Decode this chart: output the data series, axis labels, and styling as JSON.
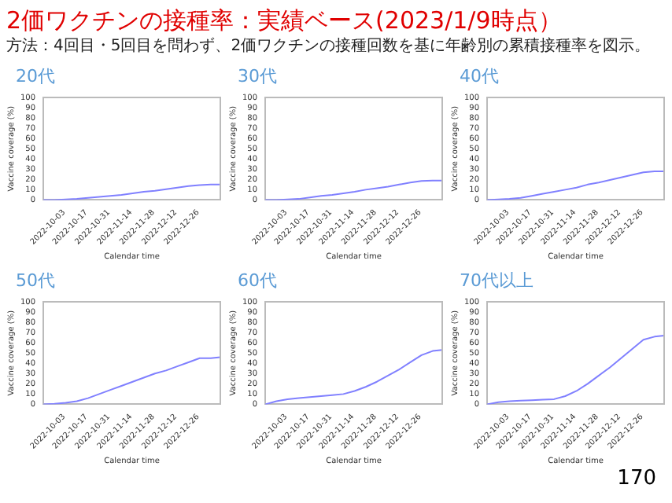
{
  "chart_data": [
    {
      "type": "other",
      "title": "2価ワクチンの接種率：実績ベース(2023/1/9時点）",
      "subtitle": "方法：4回目・5回目を問わず、2価ワクチンの接種回数を基に年齢別の累積接種率を図示。",
      "annotations": [
        "170"
      ]
    },
    {
      "type": "line",
      "title": "20代",
      "xlabel": "Calendar time",
      "ylabel": "Vaccine coverage (%)",
      "x": [
        "2022-09-20",
        "2022-09-27",
        "2022-10-04",
        "2022-10-11",
        "2022-10-18",
        "2022-10-25",
        "2022-11-01",
        "2022-11-08",
        "2022-11-15",
        "2022-11-22",
        "2022-11-29",
        "2022-12-06",
        "2022-12-13",
        "2022-12-20",
        "2022-12-27",
        "2023-01-03",
        "2023-01-09"
      ],
      "series": [
        {
          "color": "#8080ff",
          "values": [
            0,
            0,
            0.5,
            1,
            2,
            3,
            4,
            5,
            6.5,
            8,
            9,
            10.5,
            12,
            13.5,
            14.5,
            15,
            15
          ]
        }
      ],
      "xlim": [
        "2022-09-20",
        "2023-01-09"
      ],
      "xticks": [
        "2022-10-03",
        "2022-10-17",
        "2022-10-31",
        "2022-11-14",
        "2022-11-28",
        "2022-12-12",
        "2022-12-26"
      ],
      "ylim": [
        0,
        100
      ],
      "yticks": [
        0,
        10,
        20,
        30,
        40,
        50,
        60,
        70,
        80,
        90,
        100
      ],
      "grid": false,
      "legend": false,
      "marker": "none"
    },
    {
      "type": "line",
      "title": "30代",
      "xlabel": "Calendar time",
      "ylabel": "Vaccine coverage (%)",
      "x": [
        "2022-09-20",
        "2022-09-27",
        "2022-10-04",
        "2022-10-11",
        "2022-10-18",
        "2022-10-25",
        "2022-11-01",
        "2022-11-08",
        "2022-11-15",
        "2022-11-22",
        "2022-11-29",
        "2022-12-06",
        "2022-12-13",
        "2022-12-20",
        "2022-12-27",
        "2023-01-03",
        "2023-01-09"
      ],
      "series": [
        {
          "color": "#8080ff",
          "values": [
            0,
            0,
            0.5,
            1,
            2.5,
            4,
            5,
            6.5,
            8,
            10,
            11.5,
            13,
            15,
            17,
            18.5,
            19,
            19
          ]
        }
      ],
      "xlim": [
        "2022-09-20",
        "2023-01-09"
      ],
      "xticks": [
        "2022-10-03",
        "2022-10-17",
        "2022-10-31",
        "2022-11-14",
        "2022-11-28",
        "2022-12-12",
        "2022-12-26"
      ],
      "ylim": [
        0,
        100
      ],
      "yticks": [
        0,
        10,
        20,
        30,
        40,
        50,
        60,
        70,
        80,
        90,
        100
      ],
      "grid": false,
      "legend": false,
      "marker": "none"
    },
    {
      "type": "line",
      "title": "40代",
      "xlabel": "Calendar time",
      "ylabel": "Vaccine coverage (%)",
      "x": [
        "2022-09-20",
        "2022-09-27",
        "2022-10-04",
        "2022-10-11",
        "2022-10-18",
        "2022-10-25",
        "2022-11-01",
        "2022-11-08",
        "2022-11-15",
        "2022-11-22",
        "2022-11-29",
        "2022-12-06",
        "2022-12-13",
        "2022-12-20",
        "2022-12-27",
        "2023-01-03",
        "2023-01-09"
      ],
      "series": [
        {
          "color": "#8080ff",
          "values": [
            0,
            0.5,
            1,
            2,
            4,
            6,
            8,
            10,
            12,
            15,
            17,
            19.5,
            22,
            24.5,
            27,
            28,
            28
          ]
        }
      ],
      "xlim": [
        "2022-09-20",
        "2023-01-09"
      ],
      "xticks": [
        "2022-10-03",
        "2022-10-17",
        "2022-10-31",
        "2022-11-14",
        "2022-11-28",
        "2022-12-12",
        "2022-12-26"
      ],
      "ylim": [
        0,
        100
      ],
      "yticks": [
        0,
        10,
        20,
        30,
        40,
        50,
        60,
        70,
        80,
        90,
        100
      ],
      "grid": false,
      "legend": false,
      "marker": "none"
    },
    {
      "type": "line",
      "title": "50代",
      "xlabel": "Calendar time",
      "ylabel": "Vaccine coverage (%)",
      "x": [
        "2022-09-20",
        "2022-09-27",
        "2022-10-04",
        "2022-10-11",
        "2022-10-18",
        "2022-10-25",
        "2022-11-01",
        "2022-11-08",
        "2022-11-15",
        "2022-11-22",
        "2022-11-29",
        "2022-12-06",
        "2022-12-13",
        "2022-12-20",
        "2022-12-27",
        "2023-01-03",
        "2023-01-09"
      ],
      "series": [
        {
          "color": "#8080ff",
          "values": [
            0,
            0.5,
            1.5,
            3,
            6,
            10,
            14,
            18,
            22,
            26,
            30,
            33,
            37,
            41,
            45,
            45,
            46
          ]
        }
      ],
      "xlim": [
        "2022-09-20",
        "2023-01-09"
      ],
      "xticks": [
        "2022-10-03",
        "2022-10-17",
        "2022-10-31",
        "2022-11-14",
        "2022-11-28",
        "2022-12-12",
        "2022-12-26"
      ],
      "ylim": [
        0,
        100
      ],
      "yticks": [
        0,
        10,
        20,
        30,
        40,
        50,
        60,
        70,
        80,
        90,
        100
      ],
      "grid": false,
      "legend": false,
      "marker": "none"
    },
    {
      "type": "line",
      "title": "60代",
      "xlabel": "Calendar time",
      "ylabel": "Vaccine coverage (%)",
      "x": [
        "2022-09-20",
        "2022-09-27",
        "2022-10-04",
        "2022-10-11",
        "2022-10-18",
        "2022-10-25",
        "2022-11-01",
        "2022-11-08",
        "2022-11-15",
        "2022-11-22",
        "2022-11-29",
        "2022-12-06",
        "2022-12-13",
        "2022-12-20",
        "2022-12-27",
        "2023-01-03",
        "2023-01-09"
      ],
      "series": [
        {
          "color": "#8080ff",
          "values": [
            0,
            3,
            5,
            6,
            7,
            8,
            9,
            10,
            13,
            17,
            22,
            28,
            34,
            41,
            48,
            52,
            53
          ]
        }
      ],
      "xlim": [
        "2022-09-20",
        "2023-01-09"
      ],
      "xticks": [
        "2022-10-03",
        "2022-10-17",
        "2022-10-31",
        "2022-11-14",
        "2022-11-28",
        "2022-12-12",
        "2022-12-26"
      ],
      "ylim": [
        0,
        100
      ],
      "yticks": [
        0,
        10,
        20,
        30,
        40,
        50,
        60,
        70,
        80,
        90,
        100
      ],
      "grid": false,
      "legend": false,
      "marker": "none"
    },
    {
      "type": "line",
      "title": "70代以上",
      "xlabel": "Calendar time",
      "ylabel": "Vaccine coverage (%)",
      "x": [
        "2022-09-20",
        "2022-09-27",
        "2022-10-04",
        "2022-10-11",
        "2022-10-18",
        "2022-10-25",
        "2022-11-01",
        "2022-11-08",
        "2022-11-15",
        "2022-11-22",
        "2022-11-29",
        "2022-12-06",
        "2022-12-13",
        "2022-12-20",
        "2022-12-27",
        "2023-01-03",
        "2023-01-09"
      ],
      "series": [
        {
          "color": "#8080ff",
          "values": [
            0,
            2,
            3,
            3.5,
            4,
            4.5,
            5,
            8,
            13,
            20,
            28,
            36,
            45,
            54,
            63,
            66,
            67
          ]
        }
      ],
      "xlim": [
        "2022-09-20",
        "2023-01-09"
      ],
      "xticks": [
        "2022-10-03",
        "2022-10-17",
        "2022-10-31",
        "2022-11-14",
        "2022-11-28",
        "2022-12-12",
        "2022-12-26"
      ],
      "ylim": [
        0,
        100
      ],
      "yticks": [
        0,
        10,
        20,
        30,
        40,
        50,
        60,
        70,
        80,
        90,
        100
      ],
      "grid": false,
      "legend": false,
      "marker": "none"
    }
  ]
}
